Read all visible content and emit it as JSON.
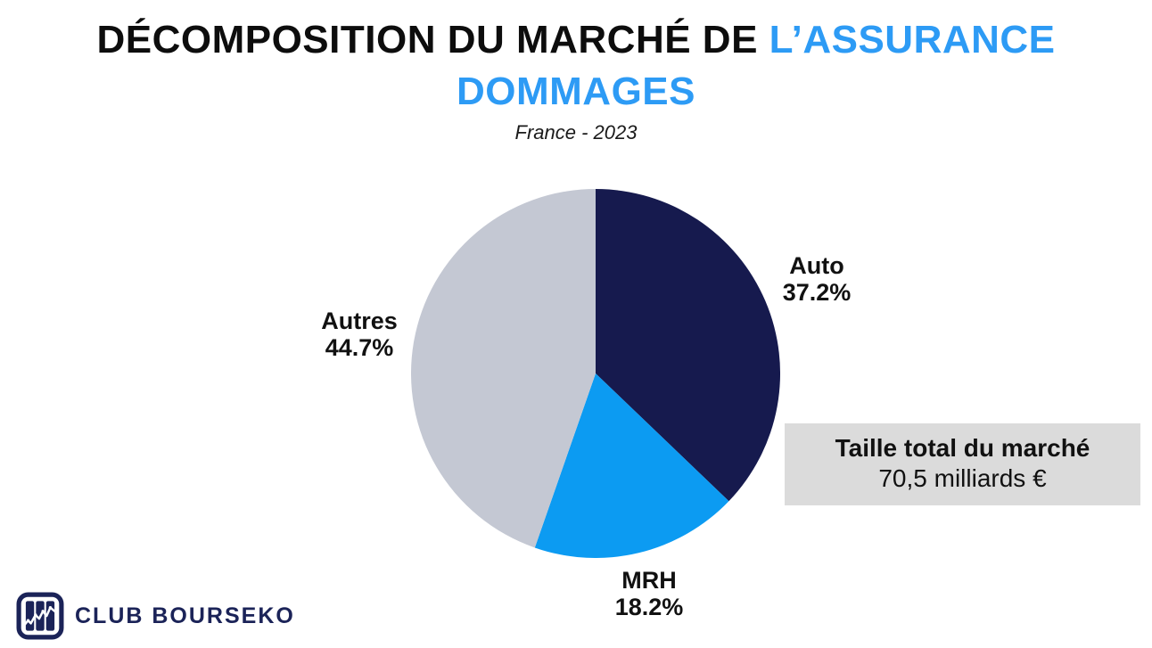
{
  "header": {
    "title_black": "DÉCOMPOSITION DU MARCHÉ DE ",
    "title_blue": "L’ASSURANCE",
    "title_line2": "DOMMAGES",
    "subtitle": "France - 2023"
  },
  "chart_data": {
    "type": "pie",
    "title": "Décomposition du marché de l'assurance dommages",
    "subtitle": "France - 2023",
    "start_angle_deg": -90,
    "direction": "clockwise",
    "legend_position": "labels-outside",
    "segments": [
      {
        "label": "Auto",
        "value": 37.2,
        "pct_label": "37.2%",
        "color": "#161a4e"
      },
      {
        "label": "MRH",
        "value": 18.2,
        "pct_label": "18.2%",
        "color": "#0c9bf2"
      },
      {
        "label": "Autres",
        "value": 44.7,
        "pct_label": "44.7%",
        "color": "#c4c8d3"
      }
    ]
  },
  "info_box": {
    "title": "Taille total du marché",
    "value": "70,5 milliards €",
    "background_color": "#dbdbdb"
  },
  "footer": {
    "brand": "CLUB BOURSEKO",
    "logo_icon": "stock-chart-icon",
    "brand_color": "#1b2358"
  },
  "colors": {
    "accent_blue": "#2d9bf5",
    "title_black": "#0d0d0d",
    "pie_navy": "#161a4e",
    "pie_blue": "#0c9bf2",
    "pie_gray": "#c4c8d3",
    "box_gray": "#dbdbdb"
  }
}
